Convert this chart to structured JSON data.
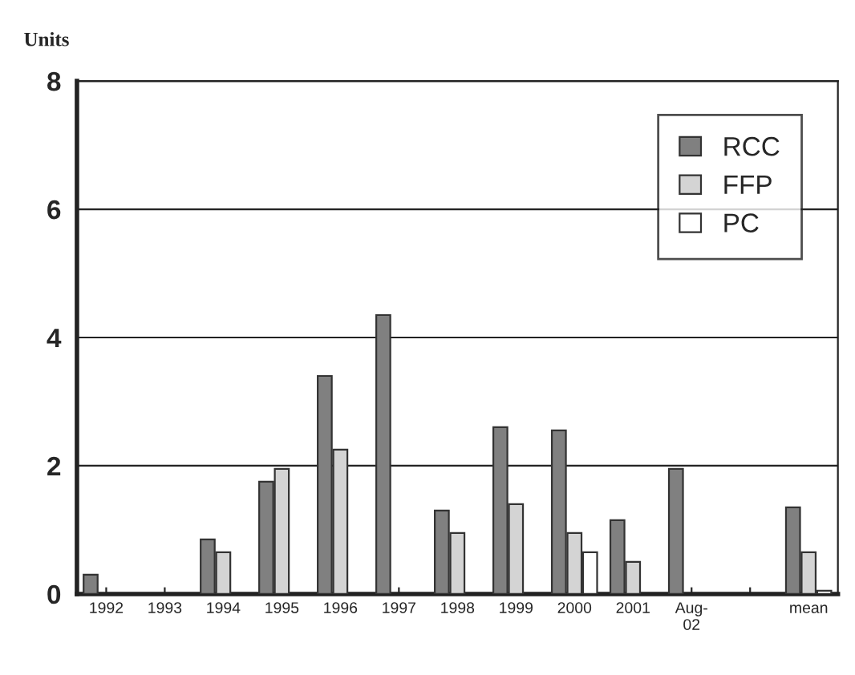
{
  "chart_data": {
    "type": "bar",
    "ylabel": "Units",
    "categories": [
      "1992",
      "1993",
      "1994",
      "1995",
      "1996",
      "1997",
      "1998",
      "1999",
      "2000",
      "2001",
      "Aug-\n02",
      null,
      "mean"
    ],
    "series": [
      {
        "name": "RCC",
        "color": "#808080",
        "values": [
          0.3,
          null,
          0.85,
          1.75,
          3.4,
          4.35,
          1.3,
          2.6,
          2.55,
          1.15,
          1.95,
          null,
          1.35
        ]
      },
      {
        "name": "FFP",
        "color": "#d4d4d4",
        "values": [
          null,
          null,
          0.65,
          1.95,
          2.25,
          null,
          0.95,
          1.4,
          0.95,
          0.5,
          null,
          null,
          0.65
        ]
      },
      {
        "name": "PC",
        "color": "#ffffff",
        "values": [
          null,
          null,
          null,
          null,
          null,
          null,
          null,
          null,
          0.65,
          null,
          null,
          null,
          0.05
        ]
      }
    ],
    "ylim": [
      0,
      8
    ],
    "yticks": [
      0,
      2,
      4,
      6,
      8
    ],
    "grid": "y",
    "legend": "top right"
  }
}
